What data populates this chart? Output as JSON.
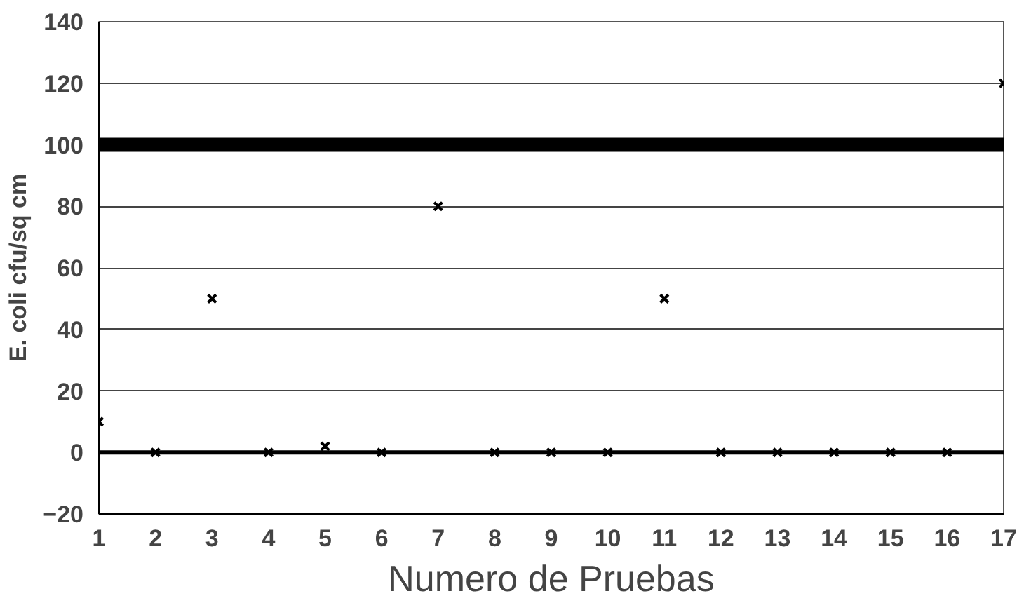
{
  "chart_data": {
    "type": "scatter",
    "xlabel": "Numero de Pruebas",
    "ylabel": "E. coli cfu/sq cm",
    "x": [
      1,
      2,
      3,
      4,
      5,
      6,
      7,
      8,
      9,
      10,
      11,
      12,
      13,
      14,
      15,
      16,
      17
    ],
    "values": [
      10,
      0,
      50,
      0,
      2,
      0,
      80,
      0,
      0,
      0,
      50,
      0,
      0,
      0,
      0,
      0,
      120
    ],
    "color": "#000000",
    "marker": "cross",
    "xlim": [
      1,
      17
    ],
    "xticks": [
      1,
      2,
      3,
      4,
      5,
      6,
      7,
      8,
      9,
      10,
      11,
      12,
      13,
      14,
      15,
      16,
      17
    ],
    "ylim": [
      -20,
      140
    ],
    "yticks": [
      -20,
      0,
      20,
      40,
      60,
      80,
      100,
      120,
      140
    ],
    "grid": "y",
    "ref_lines": [
      {
        "axis": "y",
        "value": 100,
        "color": "#000000"
      },
      {
        "axis": "y",
        "value": 0,
        "color": "#000000"
      }
    ]
  }
}
